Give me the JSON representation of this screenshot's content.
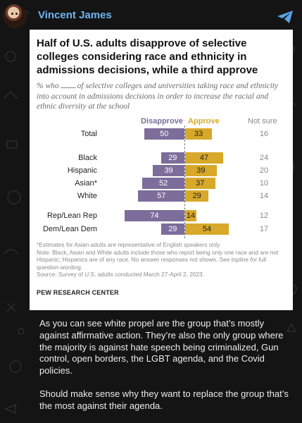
{
  "header": {
    "sender_name": "Vincent James",
    "avatar_icon": "avatar-photo",
    "share_icon": "telegram-send-icon",
    "accent_color": "#6fb3f0"
  },
  "image": {
    "title": "Half of U.S. adults disapprove of selective colleges considering race and ethnicity in admissions decisions, while a third approve",
    "subtitle_before": "% who",
    "subtitle_after": "of selective colleges and universities taking race and ethnicity into account in admissions decisions in order to increase the racial and ethnic diversity at the school",
    "notes": [
      "*Estimates for Asian adults are representative of English speakers only.",
      "Note: Black, Asian and White adults include those who report being only one race and are not Hispanic; Hispanics are of any race. No answer responses not shown. See topline for full question wording.",
      "Source: Survey of U.S. adults conducted March 27-April 2, 2023."
    ],
    "brand": "PEW RESEARCH CENTER"
  },
  "chart_data": {
    "type": "bar",
    "orientation": "horizontal-diverging",
    "legend": [
      "Disapprove",
      "Approve",
      "Not sure"
    ],
    "colors": {
      "Disapprove": "#7c6d9a",
      "Approve": "#d7a829",
      "Not sure": "#888888"
    },
    "categories": [
      "Total",
      "Black",
      "Hispanic",
      "Asian*",
      "White",
      "Rep/Lean Rep",
      "Dem/Lean Dem"
    ],
    "series": [
      {
        "name": "Disapprove",
        "values": [
          50,
          29,
          39,
          52,
          57,
          74,
          29
        ]
      },
      {
        "name": "Approve",
        "values": [
          33,
          47,
          39,
          37,
          29,
          14,
          54
        ]
      },
      {
        "name": "Not sure",
        "values": [
          16,
          24,
          20,
          10,
          14,
          12,
          17
        ]
      }
    ]
  },
  "caption": {
    "paragraphs": [
      "As you can see white propel are the group that’s mostly against affirmative action. They’re also the only group where the majority is against hate speech being criminalized, Gun control, open borders, the LGBT agenda, and the Covid policies.",
      "Should make sense why they want to replace the group that’s the most against their agenda."
    ]
  }
}
